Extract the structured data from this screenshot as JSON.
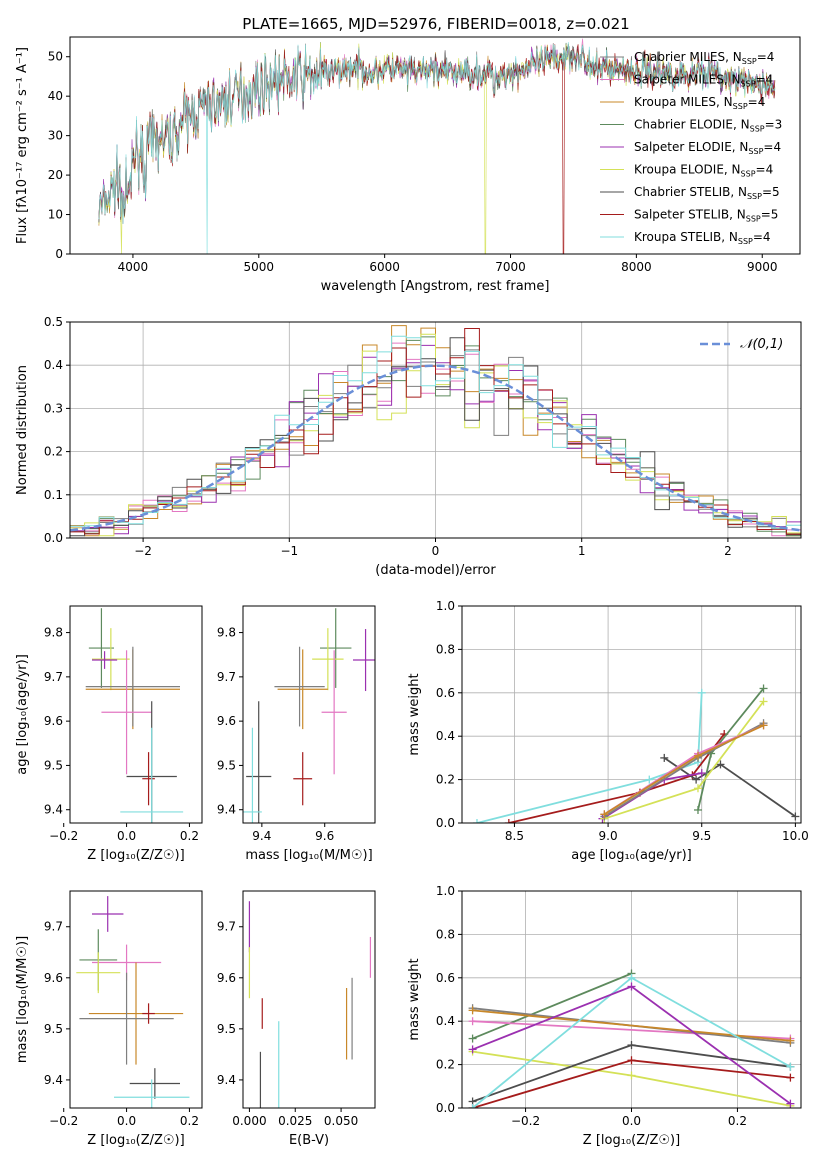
{
  "figure_title": "PLATE=1665, MJD=52976, FIBERID=0018, z=0.021",
  "series": [
    {
      "name": "Chabrier MILES",
      "color": "#7f7f7f",
      "nssp": 4
    },
    {
      "name": "Salpeter MILES",
      "color": "#e377c2",
      "nssp": 4
    },
    {
      "name": "Kroupa MILES",
      "color": "#c8882a",
      "nssp": 4
    },
    {
      "name": "Chabrier ELODIE",
      "color": "#5d8a5d",
      "nssp": 3
    },
    {
      "name": "Salpeter ELODIE",
      "color": "#9b30b0",
      "nssp": 4
    },
    {
      "name": "Kroupa ELODIE",
      "color": "#d4e157",
      "nssp": 4
    },
    {
      "name": "Chabrier STELIB",
      "color": "#4d4d4d",
      "nssp": 5
    },
    {
      "name": "Salpeter STELIB",
      "color": "#a51c1c",
      "nssp": 5
    },
    {
      "name": "Kroupa STELIB",
      "color": "#80dede",
      "nssp": 4
    }
  ],
  "chart_data": [
    {
      "id": "spectrum",
      "type": "line",
      "xlabel": "wavelength [Angstrom, rest frame]",
      "ylabel": "Flux [fλ10⁻¹⁷ erg cm⁻² s⁻¹ A⁻¹]",
      "xlim": [
        3500,
        9300
      ],
      "ylim": [
        0,
        55
      ],
      "xticks": [
        4000,
        5000,
        6000,
        7000,
        8000,
        9000
      ],
      "yticks": [
        0,
        10,
        20,
        30,
        40,
        50
      ],
      "continuum": [
        [
          3730,
          11
        ],
        [
          3800,
          14
        ],
        [
          3900,
          20
        ],
        [
          4000,
          25
        ],
        [
          4100,
          27
        ],
        [
          4200,
          29
        ],
        [
          4300,
          29
        ],
        [
          4400,
          34
        ],
        [
          4500,
          36
        ],
        [
          4600,
          38
        ],
        [
          4700,
          38
        ],
        [
          4800,
          40
        ],
        [
          4900,
          41
        ],
        [
          5000,
          42
        ],
        [
          5100,
          44
        ],
        [
          5200,
          44
        ],
        [
          5300,
          45
        ],
        [
          5400,
          45
        ],
        [
          5500,
          46
        ],
        [
          5600,
          46
        ],
        [
          5700,
          47
        ],
        [
          5800,
          47
        ],
        [
          5900,
          46
        ],
        [
          6000,
          47
        ],
        [
          6100,
          47
        ],
        [
          6200,
          46
        ],
        [
          6300,
          46
        ],
        [
          6400,
          47
        ],
        [
          6500,
          46
        ],
        [
          6600,
          46
        ],
        [
          6700,
          46
        ],
        [
          6800,
          46
        ],
        [
          6900,
          46
        ],
        [
          7000,
          46
        ],
        [
          7100,
          47
        ],
        [
          7200,
          48
        ],
        [
          7300,
          49
        ],
        [
          7400,
          50
        ],
        [
          7500,
          51
        ],
        [
          7600,
          50
        ],
        [
          7700,
          48
        ],
        [
          7800,
          47
        ],
        [
          7900,
          47
        ],
        [
          8000,
          46
        ],
        [
          8100,
          47
        ],
        [
          8200,
          46
        ],
        [
          8300,
          46
        ],
        [
          8400,
          45
        ],
        [
          8500,
          47
        ],
        [
          8600,
          46
        ],
        [
          8700,
          44
        ],
        [
          8800,
          44
        ],
        [
          8900,
          43
        ],
        [
          9000,
          43
        ],
        [
          9100,
          42
        ]
      ],
      "masked_drops": [
        {
          "wavelength": 3910,
          "series": "Kroupa ELODIE"
        },
        {
          "wavelength": 4590,
          "series": "Kroupa STELIB"
        },
        {
          "wavelength": 6800,
          "series": "Kroupa ELODIE"
        },
        {
          "wavelength": 7420,
          "series": "Salpeter STELIB"
        }
      ],
      "legend_position": "upper-right"
    },
    {
      "id": "residuals",
      "type": "histogram",
      "xlabel": "(data-model)/error",
      "ylabel": "Normed distribution",
      "xlim": [
        -2.5,
        2.5
      ],
      "ylim": [
        0,
        0.5
      ],
      "xticks": [
        -2,
        -1,
        0,
        1,
        2
      ],
      "yticks": [
        0.0,
        0.1,
        0.2,
        0.3,
        0.4,
        0.5
      ],
      "bin_width": 0.1,
      "reference_curve": {
        "name": "𝒩(0,1)",
        "mean": 0,
        "sigma": 1,
        "color": "#6a8fd8"
      },
      "grid": true,
      "legend_position": "upper-right"
    },
    {
      "id": "age-vs-Z",
      "type": "errorbar",
      "xlabel": "Z [log₁₀(Z/Z☉)]",
      "ylabel": "age  [log₁₀(age/yr)]",
      "xlim": [
        -0.18,
        0.24
      ],
      "ylim": [
        9.37,
        9.86
      ],
      "xticks": [
        -0.2,
        0.0,
        0.2
      ],
      "yticks": [
        9.4,
        9.5,
        9.6,
        9.7,
        9.8
      ],
      "points": [
        {
          "series": "Chabrier ELODIE",
          "x": -0.08,
          "xerr": 0.04,
          "y": 9.765,
          "yerr": 0.09
        },
        {
          "series": "Kroupa ELODIE",
          "x": -0.05,
          "xerr": 0.06,
          "y": 9.74,
          "yerr": 0.07
        },
        {
          "series": "Salpeter ELODIE",
          "x": -0.07,
          "xerr": 0.04,
          "y": 9.738,
          "yerr": 0.02
        },
        {
          "series": "Kroupa MILES",
          "x": 0.02,
          "xerr": 0.15,
          "y": 9.672,
          "yerr": 0.09
        },
        {
          "series": "Chabrier MILES",
          "x": 0.02,
          "xerr": 0.15,
          "y": 9.678,
          "yerr": 0.09
        },
        {
          "series": "Salpeter MILES",
          "x": 0.0,
          "xerr": 0.08,
          "y": 9.62,
          "yerr": 0.14
        },
        {
          "series": "Chabrier STELIB",
          "x": 0.08,
          "xerr": 0.08,
          "y": 9.475,
          "yerr": 0.17
        },
        {
          "series": "Salpeter STELIB",
          "x": 0.07,
          "xerr": 0.02,
          "y": 9.47,
          "yerr": 0.06
        },
        {
          "series": "Kroupa STELIB",
          "x": 0.08,
          "xerr": 0.1,
          "y": 9.395,
          "yerr": 0.19
        }
      ]
    },
    {
      "id": "age-vs-mass",
      "type": "errorbar",
      "xlabel": "mass [log₁₀(M/M☉)]",
      "ylabel": "",
      "xlim": [
        9.34,
        9.76
      ],
      "ylim": [
        9.37,
        9.86
      ],
      "xticks": [
        9.4,
        9.6
      ],
      "yticks": [
        9.4,
        9.5,
        9.6,
        9.7,
        9.8
      ],
      "points": [
        {
          "series": "Chabrier ELODIE",
          "x": 9.635,
          "xerr": 0.05,
          "y": 9.765,
          "yerr": 0.09
        },
        {
          "series": "Kroupa ELODIE",
          "x": 9.61,
          "xerr": 0.05,
          "y": 9.74,
          "yerr": 0.07
        },
        {
          "series": "Salpeter ELODIE",
          "x": 9.73,
          "xerr": 0.04,
          "y": 9.738,
          "yerr": 0.07
        },
        {
          "series": "Kroupa MILES",
          "x": 9.53,
          "xerr": 0.08,
          "y": 9.672,
          "yerr": 0.09
        },
        {
          "series": "Chabrier MILES",
          "x": 9.52,
          "xerr": 0.08,
          "y": 9.678,
          "yerr": 0.09
        },
        {
          "series": "Salpeter MILES",
          "x": 9.63,
          "xerr": 0.04,
          "y": 9.62,
          "yerr": 0.14
        },
        {
          "series": "Chabrier STELIB",
          "x": 9.39,
          "xerr": 0.04,
          "y": 9.475,
          "yerr": 0.17
        },
        {
          "series": "Salpeter STELIB",
          "x": 9.53,
          "xerr": 0.03,
          "y": 9.47,
          "yerr": 0.06
        },
        {
          "series": "Kroupa STELIB",
          "x": 9.37,
          "xerr": 0.03,
          "y": 9.395,
          "yerr": 0.19
        }
      ]
    },
    {
      "id": "mass-weight-vs-age",
      "type": "line",
      "xlabel": "age  [log₁₀(age/yr)]",
      "ylabel": "mass weight",
      "xlim": [
        8.22,
        10.03
      ],
      "ylim": [
        0,
        1.0
      ],
      "xticks": [
        8.5,
        9.0,
        9.5,
        10.0
      ],
      "yticks": [
        0.0,
        0.2,
        0.4,
        0.6,
        0.8,
        1.0
      ],
      "grid": true,
      "lines": [
        {
          "series": "Kroupa STELIB",
          "x": [
            8.3,
            9.22,
            9.48,
            9.5
          ],
          "y": [
            0.0,
            0.2,
            0.28,
            0.6
          ]
        },
        {
          "series": "Salpeter STELIB",
          "x": [
            8.47,
            9.17,
            9.45,
            9.62
          ],
          "y": [
            0.0,
            0.14,
            0.22,
            0.41
          ]
        },
        {
          "series": "Chabrier STELIB",
          "x": [
            9.3,
            9.47,
            9.6,
            10.0
          ],
          "y": [
            0.3,
            0.2,
            0.27,
            0.03
          ]
        },
        {
          "series": "Chabrier ELODIE",
          "x": [
            9.48,
            9.55,
            9.83
          ],
          "y": [
            0.06,
            0.32,
            0.62
          ]
        },
        {
          "series": "Salpeter ELODIE",
          "x": [
            8.97,
            9.3,
            9.5
          ],
          "y": [
            0.02,
            0.2,
            0.23
          ]
        },
        {
          "series": "Kroupa ELODIE",
          "x": [
            8.98,
            9.48,
            9.83
          ],
          "y": [
            0.02,
            0.16,
            0.56
          ]
        },
        {
          "series": "Chabrier MILES",
          "x": [
            8.98,
            9.48,
            9.83
          ],
          "y": [
            0.03,
            0.3,
            0.46
          ]
        },
        {
          "series": "Salpeter MILES",
          "x": [
            8.98,
            9.48,
            9.83
          ],
          "y": [
            0.04,
            0.32,
            0.45
          ]
        },
        {
          "series": "Kroupa MILES",
          "x": [
            8.98,
            9.48,
            9.83
          ],
          "y": [
            0.04,
            0.31,
            0.45
          ]
        }
      ]
    },
    {
      "id": "mass-vs-Z",
      "type": "errorbar",
      "xlabel": "Z [log₁₀(Z/Z☉)]",
      "ylabel": "mass [log₁₀(M/M☉)]",
      "xlim": [
        -0.18,
        0.24
      ],
      "ylim": [
        9.345,
        9.77
      ],
      "xticks": [
        -0.2,
        0.0,
        0.2
      ],
      "yticks": [
        9.4,
        9.5,
        9.6,
        9.7
      ],
      "points": [
        {
          "series": "Salpeter ELODIE",
          "x": -0.06,
          "xerr": 0.05,
          "y": 9.725,
          "yerr": 0.035
        },
        {
          "series": "Chabrier ELODIE",
          "x": -0.09,
          "xerr": 0.06,
          "y": 9.635,
          "yerr": 0.06
        },
        {
          "series": "Salpeter MILES",
          "x": 0.0,
          "xerr": 0.11,
          "y": 9.63,
          "yerr": 0.035
        },
        {
          "series": "Kroupa ELODIE",
          "x": -0.09,
          "xerr": 0.07,
          "y": 9.61,
          "yerr": 0.04
        },
        {
          "series": "Kroupa MILES",
          "x": 0.03,
          "xerr": 0.15,
          "y": 9.53,
          "yerr": 0.1
        },
        {
          "series": "Chabrier MILES",
          "x": 0.0,
          "xerr": 0.15,
          "y": 9.52,
          "yerr": 0.09
        },
        {
          "series": "Salpeter STELIB",
          "x": 0.07,
          "xerr": 0.02,
          "y": 9.53,
          "yerr": 0.02
        },
        {
          "series": "Chabrier STELIB",
          "x": 0.09,
          "xerr": 0.08,
          "y": 9.393,
          "yerr": 0.03
        },
        {
          "series": "Kroupa STELIB",
          "x": 0.08,
          "xerr": 0.12,
          "y": 9.366,
          "yerr": 0.035
        }
      ]
    },
    {
      "id": "mass-vs-EBV",
      "type": "errorbar",
      "xlabel": "E(B-V)",
      "ylabel": "",
      "xlim": [
        -0.0035,
        0.0685
      ],
      "ylim": [
        9.345,
        9.77
      ],
      "xticks": [
        0.0,
        0.025,
        0.05
      ],
      "yticks": [
        9.4,
        9.5,
        9.6,
        9.7
      ],
      "points": [
        {
          "series": "Salpeter ELODIE",
          "x": 0.0,
          "xerr": 0,
          "y": 9.7,
          "yerr": 0.05
        },
        {
          "series": "Kroupa ELODIE",
          "x": 0.0,
          "xerr": 0,
          "y": 9.61,
          "yerr": 0.05
        },
        {
          "series": "Chabrier STELIB",
          "x": 0.006,
          "xerr": 0,
          "y": 9.395,
          "yerr": 0.06
        },
        {
          "series": "Salpeter STELIB",
          "x": 0.007,
          "xerr": 0,
          "y": 9.53,
          "yerr": 0.03
        },
        {
          "series": "Kroupa STELIB",
          "x": 0.016,
          "xerr": 0,
          "y": 9.415,
          "yerr": 0.1
        },
        {
          "series": "Kroupa MILES",
          "x": 0.053,
          "xerr": 0,
          "y": 9.51,
          "yerr": 0.07
        },
        {
          "series": "Chabrier MILES",
          "x": 0.056,
          "xerr": 0,
          "y": 9.52,
          "yerr": 0.08
        },
        {
          "series": "Salpeter MILES",
          "x": 0.066,
          "xerr": 0,
          "y": 9.64,
          "yerr": 0.04
        }
      ]
    },
    {
      "id": "mass-weight-vs-Z",
      "type": "line",
      "xlabel": "Z [log₁₀(Z/Z☉)]",
      "ylabel": "mass weight",
      "xlim": [
        -0.32,
        0.32
      ],
      "ylim": [
        0,
        1.0
      ],
      "xticks": [
        -0.2,
        0.0,
        0.2
      ],
      "yticks": [
        0.0,
        0.2,
        0.4,
        0.6,
        0.8,
        1.0
      ],
      "grid": true,
      "lines": [
        {
          "series": "Chabrier ELODIE",
          "x": [
            -0.3,
            0.0
          ],
          "y": [
            0.32,
            0.62
          ]
        },
        {
          "series": "Kroupa ELODIE",
          "x": [
            -0.3,
            0.0,
            0.3
          ],
          "y": [
            0.26,
            0.15,
            0.01
          ]
        },
        {
          "series": "Salpeter MILES",
          "x": [
            -0.3,
            0.3
          ],
          "y": [
            0.4,
            0.32
          ]
        },
        {
          "series": "Chabrier MILES",
          "x": [
            -0.3,
            0.3
          ],
          "y": [
            0.46,
            0.3
          ]
        },
        {
          "series": "Kroupa MILES",
          "x": [
            -0.3,
            0.3
          ],
          "y": [
            0.45,
            0.31
          ]
        },
        {
          "series": "Chabrier STELIB",
          "x": [
            -0.3,
            0.0,
            0.3
          ],
          "y": [
            0.03,
            0.29,
            0.19
          ]
        },
        {
          "series": "Salpeter STELIB",
          "x": [
            -0.3,
            0.0,
            0.3
          ],
          "y": [
            0.0,
            0.22,
            0.14
          ]
        },
        {
          "series": "Kroupa STELIB",
          "x": [
            -0.3,
            0.0,
            0.3
          ],
          "y": [
            0.0,
            0.6,
            0.19
          ]
        },
        {
          "series": "Salpeter ELODIE",
          "x": [
            -0.3,
            0.0,
            0.3
          ],
          "y": [
            0.27,
            0.56,
            0.02
          ]
        }
      ]
    }
  ]
}
